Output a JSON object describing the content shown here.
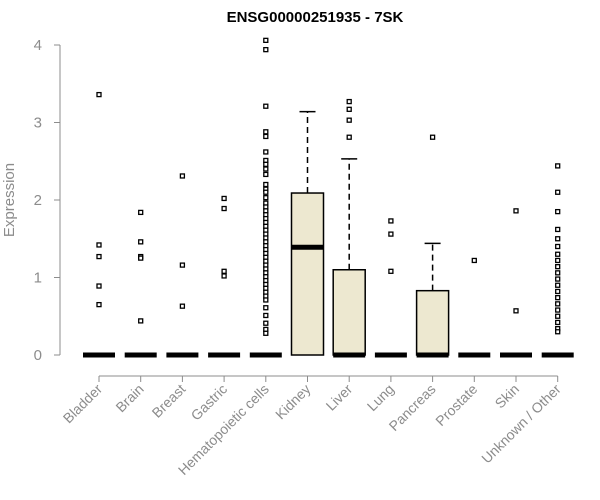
{
  "chart_data": {
    "type": "box",
    "title": "ENSG00000251935 - 7SK",
    "xlabel": "",
    "ylabel": "Expression",
    "ylim": [
      0,
      4.1
    ],
    "yticks": [
      "0",
      "1",
      "2",
      "3",
      "4"
    ],
    "grid": false,
    "box_fill": "#ede8d0",
    "categories": [
      "Bladder",
      "Brain",
      "Breast",
      "Gastric",
      "Hematopoietic cells",
      "Kidney",
      "Liver",
      "Lung",
      "Pancreas",
      "Prostate",
      "Skin",
      "Unknown / Other"
    ],
    "boxes": [
      {
        "category": "Bladder",
        "q1": 0,
        "median": 0,
        "q3": 0,
        "whisker_low": 0,
        "whisker_high": 0,
        "outliers": [
          3.36,
          1.42,
          1.27,
          0.89,
          0.65
        ]
      },
      {
        "category": "Brain",
        "q1": 0,
        "median": 0,
        "q3": 0,
        "whisker_low": 0,
        "whisker_high": 0,
        "outliers": [
          1.84,
          1.46,
          1.27,
          1.25,
          0.44
        ]
      },
      {
        "category": "Breast",
        "q1": 0,
        "median": 0,
        "q3": 0,
        "whisker_low": 0,
        "whisker_high": 0,
        "outliers": [
          2.31,
          1.16,
          0.63
        ]
      },
      {
        "category": "Gastric",
        "q1": 0,
        "median": 0,
        "q3": 0,
        "whisker_low": 0,
        "whisker_high": 0,
        "outliers": [
          2.02,
          1.89,
          1.08,
          1.02
        ]
      },
      {
        "category": "Hematopoietic cells",
        "q1": 0,
        "median": 0,
        "q3": 0,
        "whisker_low": 0,
        "whisker_high": 0,
        "outliers": [
          4.06,
          3.94,
          3.21,
          2.88,
          2.82,
          2.62,
          2.51,
          2.46,
          2.4,
          2.33,
          2.2,
          2.14,
          2.1,
          2.03,
          1.96,
          1.91,
          1.86,
          1.81,
          1.76,
          1.71,
          1.66,
          1.61,
          1.56,
          1.51,
          1.46,
          1.41,
          1.36,
          1.31,
          1.26,
          1.21,
          1.16,
          1.11,
          1.06,
          1.01,
          0.96,
          0.91,
          0.86,
          0.81,
          0.76,
          0.71,
          0.61,
          0.51,
          0.41,
          0.33,
          0.28
        ]
      },
      {
        "category": "Kidney",
        "q1": 0,
        "median": 1.39,
        "q3": 2.09,
        "whisker_low": 0,
        "whisker_high": 3.14,
        "outliers": []
      },
      {
        "category": "Liver",
        "q1": 0,
        "median": 0,
        "q3": 1.1,
        "whisker_low": 0,
        "whisker_high": 2.53,
        "outliers": [
          3.27,
          3.17,
          3.03,
          2.81
        ]
      },
      {
        "category": "Lung",
        "q1": 0,
        "median": 0,
        "q3": 0,
        "whisker_low": 0,
        "whisker_high": 0,
        "outliers": [
          1.73,
          1.56,
          1.08
        ]
      },
      {
        "category": "Pancreas",
        "q1": 0,
        "median": 0,
        "q3": 0.83,
        "whisker_low": 0,
        "whisker_high": 1.44,
        "outliers": [
          2.81
        ]
      },
      {
        "category": "Prostate",
        "q1": 0,
        "median": 0,
        "q3": 0,
        "whisker_low": 0,
        "whisker_high": 0,
        "outliers": [
          1.22
        ]
      },
      {
        "category": "Skin",
        "q1": 0,
        "median": 0,
        "q3": 0,
        "whisker_low": 0,
        "whisker_high": 0,
        "outliers": [
          1.86,
          0.57
        ]
      },
      {
        "category": "Unknown / Other",
        "q1": 0,
        "median": 0,
        "q3": 0,
        "whisker_low": 0,
        "whisker_high": 0,
        "outliers": [
          2.44,
          2.1,
          1.85,
          1.62,
          1.5,
          1.4,
          1.3,
          1.22,
          1.14,
          1.06,
          0.98,
          0.9,
          0.82,
          0.74,
          0.66,
          0.58,
          0.5,
          0.42,
          0.34,
          0.3
        ]
      }
    ]
  }
}
